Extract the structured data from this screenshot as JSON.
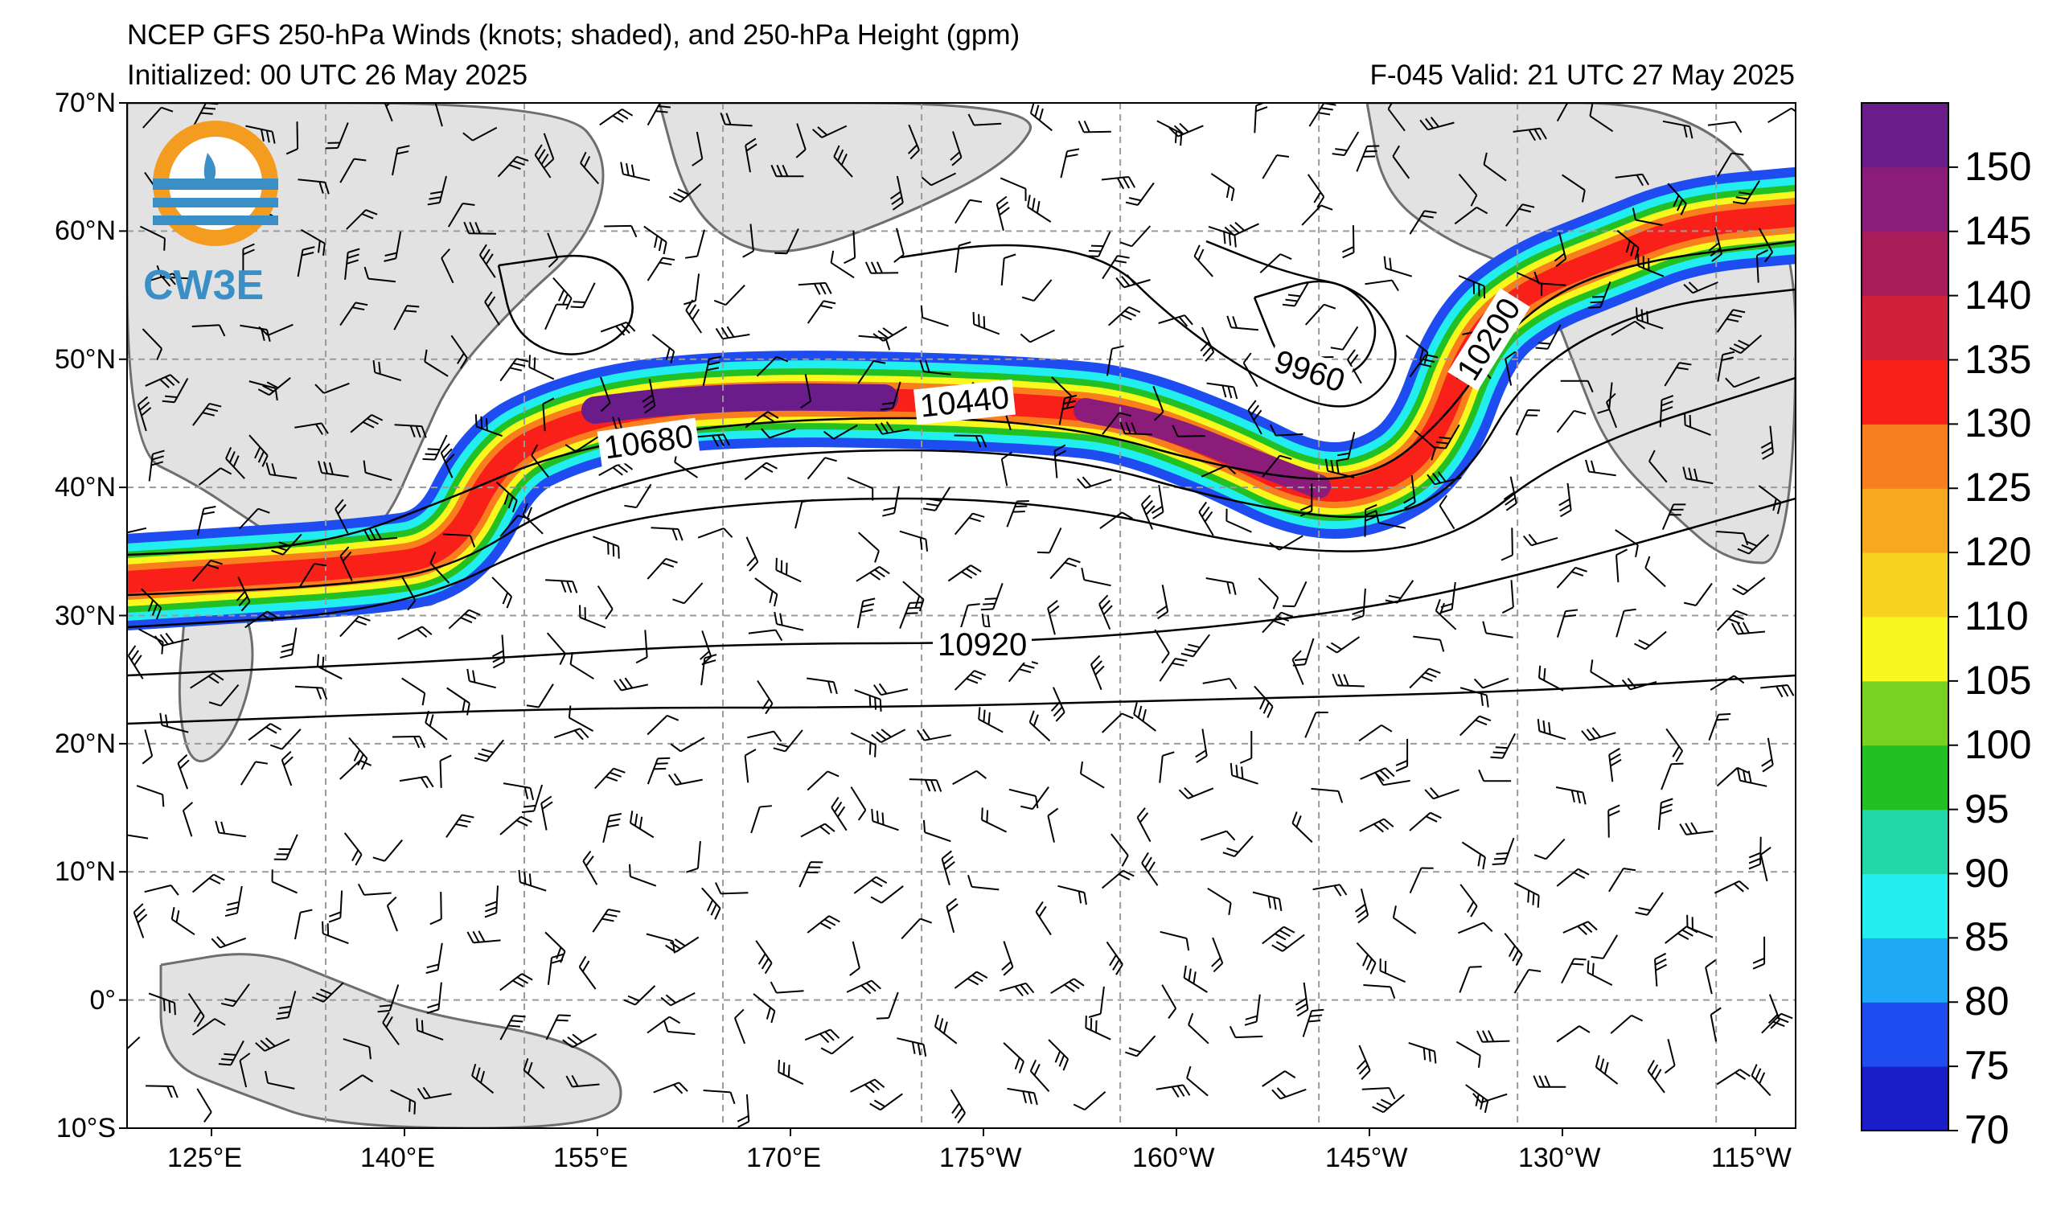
{
  "title": {
    "line1": "NCEP GFS 250-hPa Winds (knots; shaded), and 250-hPa Height (gpm)",
    "line2_left": "Initialized: 00 UTC 26 May 2025",
    "line2_right": "F-045  Valid: 21 UTC 27 May 2025"
  },
  "logo": {
    "text": "CW3E",
    "icon": "cw3e-logo-icon"
  },
  "axes": {
    "lat_labels": [
      "70°N",
      "60°N",
      "50°N",
      "40°N",
      "30°N",
      "20°N",
      "10°N",
      "0°",
      "10°S"
    ],
    "lon_labels": [
      "125°E",
      "140°E",
      "155°E",
      "170°E",
      "175°W",
      "160°W",
      "145°W",
      "130°W",
      "115°W"
    ]
  },
  "colorbar": {
    "labels": [
      "70",
      "75",
      "80",
      "85",
      "90",
      "95",
      "100",
      "105",
      "110",
      "120",
      "125",
      "130",
      "135",
      "140",
      "145",
      "150"
    ],
    "colors": [
      "#1a1ec8",
      "#1f4cf0",
      "#1fa8f5",
      "#22eef0",
      "#22d8a8",
      "#22c022",
      "#78d222",
      "#f8f81e",
      "#f8d21e",
      "#f8a81e",
      "#f87e1e",
      "#f82018",
      "#d0203a",
      "#a81c5a",
      "#8c1c7a",
      "#6a1c8a"
    ]
  },
  "contours": {
    "labels": [
      "10680",
      "10440",
      "9960",
      "10200",
      "10920"
    ]
  },
  "map_colors": {
    "land": "#e2e2e2",
    "coast": "#6e6e6e",
    "grid": "#9a9a9a",
    "contour": "#000000"
  }
}
